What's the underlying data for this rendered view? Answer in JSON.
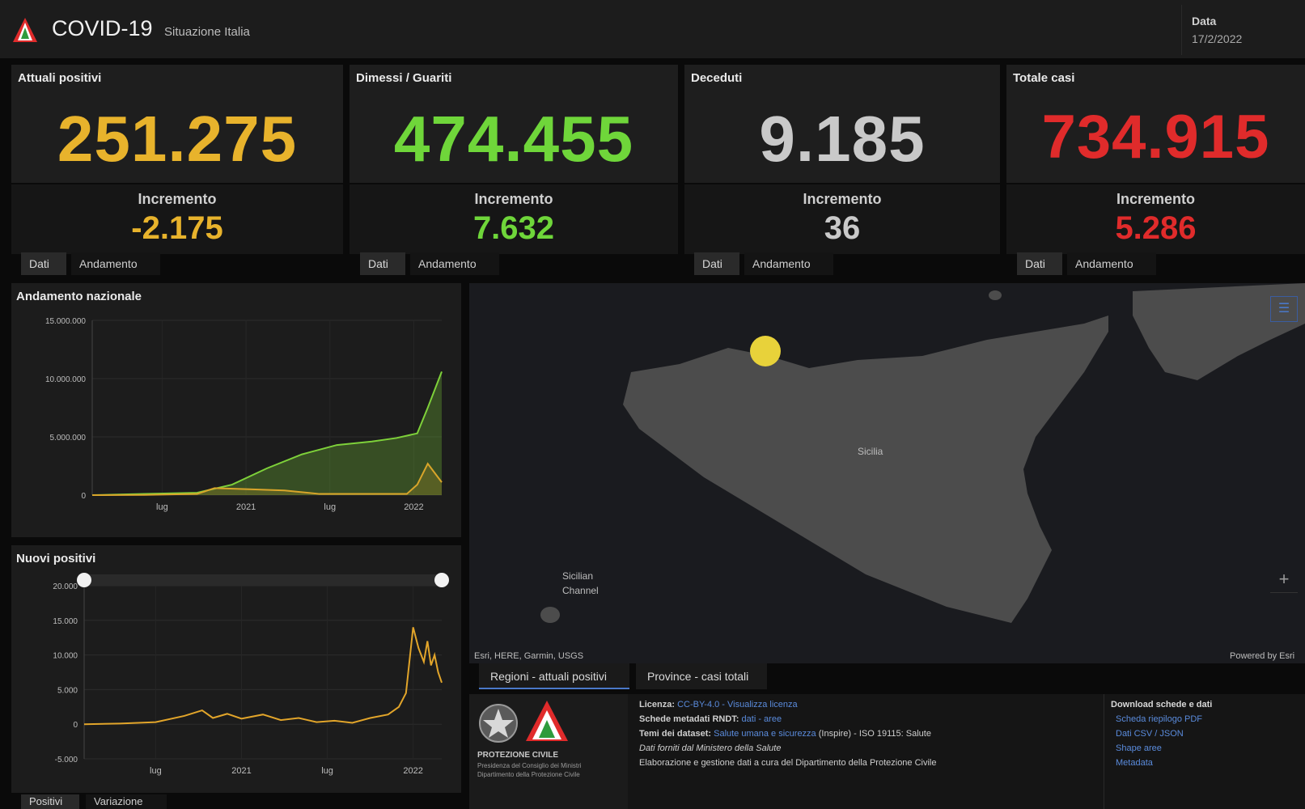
{
  "header": {
    "title": "COVID-19",
    "subtitle": "Situazione Italia",
    "date_label": "Data",
    "date_value": "17/2/2022"
  },
  "stats": [
    {
      "title": "Attuali positivi",
      "value": "251.275",
      "increment_label": "Incremento",
      "increment": "-2.175",
      "color": "#e8b32c",
      "tabs": [
        "Dati",
        "Andamento"
      ]
    },
    {
      "title": "Dimessi / Guariti",
      "value": "474.455",
      "increment_label": "Incremento",
      "increment": "7.632",
      "color": "#6fd63a",
      "tabs": [
        "Dati",
        "Andamento"
      ]
    },
    {
      "title": "Deceduti",
      "value": "9.185",
      "increment_label": "Incremento",
      "increment": "36",
      "color": "#c9c9c9",
      "tabs": [
        "Dati",
        "Andamento"
      ]
    },
    {
      "title": "Totale casi",
      "value": "734.915",
      "increment_label": "Incremento",
      "increment": "5.286",
      "color": "#e02b2b",
      "tabs": [
        "Dati",
        "Andamento"
      ]
    }
  ],
  "chart_data": [
    {
      "type": "area",
      "title": "Andamento nazionale",
      "ylim": [
        0,
        15000000
      ],
      "yticks": [
        "15.000.000",
        "10.000.000",
        "5.000.000",
        "0"
      ],
      "xticks": [
        "lug",
        "2021",
        "lug",
        "2022"
      ],
      "series": [
        {
          "color": "#7ed13a",
          "x": [
            0,
            0.15,
            0.3,
            0.4,
            0.5,
            0.6,
            0.7,
            0.8,
            0.87,
            0.93,
            0.96,
            1.0
          ],
          "y": [
            0,
            100000,
            200000,
            900000,
            2300000,
            3500000,
            4300000,
            4600000,
            4900000,
            5300000,
            7500000,
            10600000
          ]
        },
        {
          "color": "#d9a52a",
          "x": [
            0,
            0.15,
            0.3,
            0.35,
            0.45,
            0.55,
            0.65,
            0.75,
            0.85,
            0.9,
            0.93,
            0.96,
            1.0
          ],
          "y": [
            0,
            20000,
            100000,
            600000,
            500000,
            400000,
            100000,
            100000,
            100000,
            100000,
            900000,
            2700000,
            1100000
          ]
        }
      ]
    },
    {
      "type": "line",
      "title": "Nuovi positivi",
      "ylim": [
        -5000,
        20000
      ],
      "yticks": [
        "20.000",
        "15.000",
        "10.000",
        "5.000",
        "0",
        "-5.000"
      ],
      "xticks": [
        "lug",
        "2021",
        "lug",
        "2022"
      ],
      "series": [
        {
          "color": "#e2a52a",
          "x": [
            0,
            0.1,
            0.2,
            0.28,
            0.33,
            0.36,
            0.4,
            0.44,
            0.5,
            0.55,
            0.6,
            0.65,
            0.7,
            0.75,
            0.8,
            0.85,
            0.88,
            0.9,
            0.92,
            0.935,
            0.95,
            0.96,
            0.97,
            0.98,
            0.99,
            1.0
          ],
          "y": [
            0,
            100,
            300,
            1200,
            2000,
            900,
            1500,
            800,
            1400,
            600,
            900,
            300,
            500,
            200,
            900,
            1400,
            2500,
            4500,
            14000,
            11000,
            9000,
            12000,
            8500,
            10000,
            7500,
            6000
          ]
        }
      ],
      "slider": {
        "range": [
          0.0,
          1.0
        ]
      }
    }
  ],
  "map": {
    "region_label": "Sicilia",
    "sea_label_1": "Sicilian",
    "sea_label_2": "Channel",
    "attribution": "Esri, HERE, Garmin, USGS",
    "powered_by": "Powered by Esri",
    "colors": {
      "land": "#4c4c4c",
      "water": "#1a1b1f",
      "dot": "#e8d23a"
    }
  },
  "bottom_tabs": [
    "Regioni - attuali positivi",
    "Province - casi totali"
  ],
  "left_tabs": [
    "Positivi",
    "Variazione"
  ],
  "credits": {
    "org_line1": "PROTEZIONE CIVILE",
    "org_line2": "Presidenza del Consiglio dei Ministri",
    "org_line3": "Dipartimento della Protezione Civile",
    "license_label": "Licenza:",
    "license_value": "CC-BY-4.0 - Visualizza licenza",
    "metadata_label": "Schede metadati RNDT:",
    "metadata_value": "dati - aree",
    "dataset_terms_label": "Temi dei dataset:",
    "dataset_terms_value": "Salute umana e sicurezza",
    "dataset_terms_rest": "(Inspire) - ISO 19115: Salute",
    "source": "Dati forniti dal Ministero della Salute",
    "processing": "Elaborazione e gestione dati a cura del Dipartimento della Protezione Civile",
    "downloads_title": "Download schede e dati",
    "downloads": [
      "Scheda riepilogo PDF",
      "Dati CSV / JSON",
      "Shape aree",
      "Metadata"
    ]
  }
}
